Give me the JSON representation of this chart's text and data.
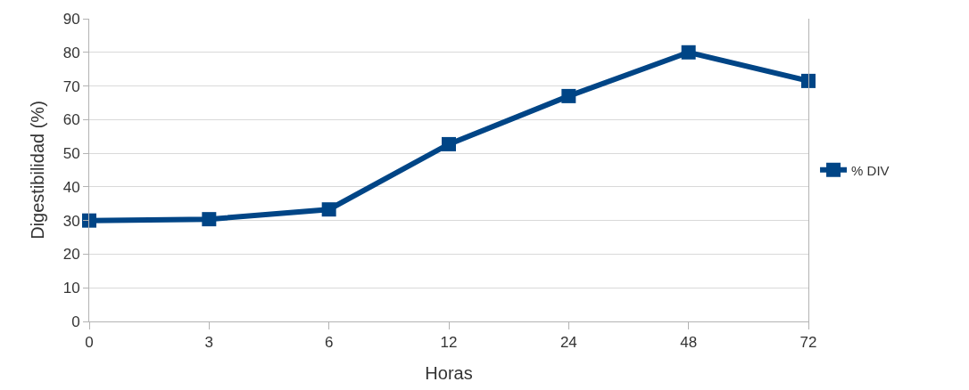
{
  "chart_data": {
    "type": "line",
    "xlabel": "Horas",
    "ylabel": "Digestibilidad (%)",
    "categories": [
      "0",
      "3",
      "6",
      "12",
      "24",
      "48",
      "72"
    ],
    "series": [
      {
        "name": "% DIV",
        "color": "#004586",
        "values": [
          30,
          30.4,
          33.3,
          52.7,
          67,
          80,
          71.5
        ]
      }
    ],
    "ylim": [
      0,
      90
    ],
    "yticks": [
      0,
      10,
      20,
      30,
      40,
      50,
      60,
      70,
      80,
      90
    ],
    "grid": "y",
    "legend": "right",
    "marker": "square",
    "line_style": "solid"
  }
}
